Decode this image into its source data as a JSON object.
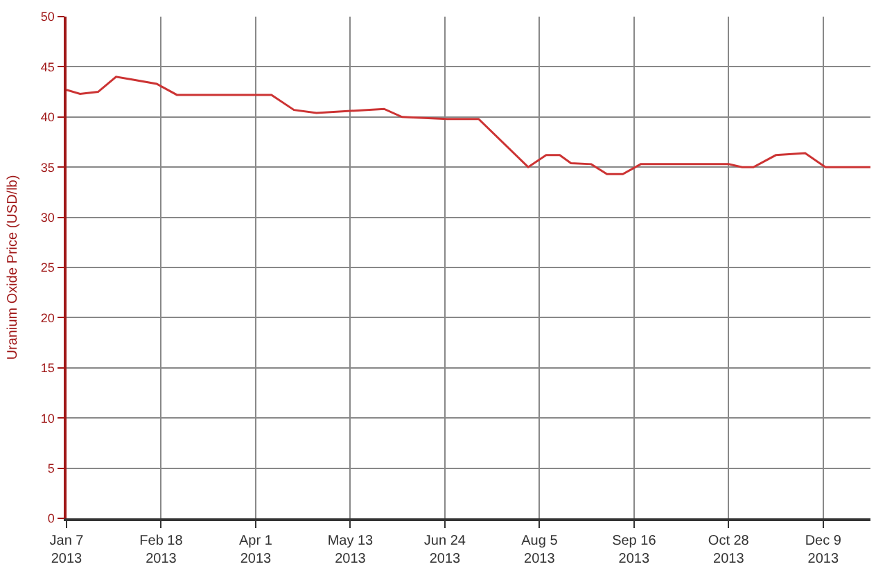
{
  "chart_data": {
    "type": "line",
    "ylabel": "Uranium Oxide Price (USD/lb)",
    "x": [
      "2013-01-07",
      "2013-01-13",
      "2013-01-21",
      "2013-01-29",
      "2013-02-06",
      "2013-02-16",
      "2013-02-25",
      "2013-04-08",
      "2013-04-18",
      "2013-04-28",
      "2013-05-28",
      "2013-06-05",
      "2013-06-25",
      "2013-07-09",
      "2013-07-31",
      "2013-08-08",
      "2013-08-14",
      "2013-08-19",
      "2013-08-28",
      "2013-09-04",
      "2013-09-11",
      "2013-09-19",
      "2013-09-27",
      "2013-10-28",
      "2013-11-03",
      "2013-11-08",
      "2013-11-18",
      "2013-12-01",
      "2013-12-10",
      "2013-12-30"
    ],
    "series": [
      {
        "color": "#cc3333",
        "values": [
          42.7,
          42.3,
          42.5,
          44.0,
          43.7,
          43.3,
          42.2,
          42.2,
          40.7,
          40.4,
          40.8,
          40.0,
          39.8,
          39.8,
          35.0,
          36.2,
          36.2,
          35.4,
          35.3,
          34.3,
          34.3,
          35.3,
          35.3,
          35.3,
          35.0,
          35.0,
          36.2,
          36.4,
          35.0,
          35.0
        ]
      }
    ],
    "xlim": [
      "2013-01-07",
      "2013-12-30"
    ],
    "xticks": [
      {
        "value": "2013-01-07",
        "label": "Jan 7\n2013"
      },
      {
        "value": "2013-02-18",
        "label": "Feb 18\n2013"
      },
      {
        "value": "2013-04-01",
        "label": "Apr 1\n2013"
      },
      {
        "value": "2013-05-13",
        "label": "May 13\n2013"
      },
      {
        "value": "2013-06-24",
        "label": "Jun 24\n2013"
      },
      {
        "value": "2013-08-05",
        "label": "Aug 5\n2013"
      },
      {
        "value": "2013-09-16",
        "label": "Sep 16\n2013"
      },
      {
        "value": "2013-10-28",
        "label": "Oct 28\n2013"
      },
      {
        "value": "2013-12-09",
        "label": "Dec 9\n2013"
      }
    ],
    "ylim": [
      0,
      50
    ],
    "yticks": [
      0,
      5,
      10,
      15,
      20,
      25,
      30,
      35,
      40,
      45,
      50
    ],
    "grid": true,
    "legend": false,
    "marker": "none",
    "line_style": "solid"
  }
}
